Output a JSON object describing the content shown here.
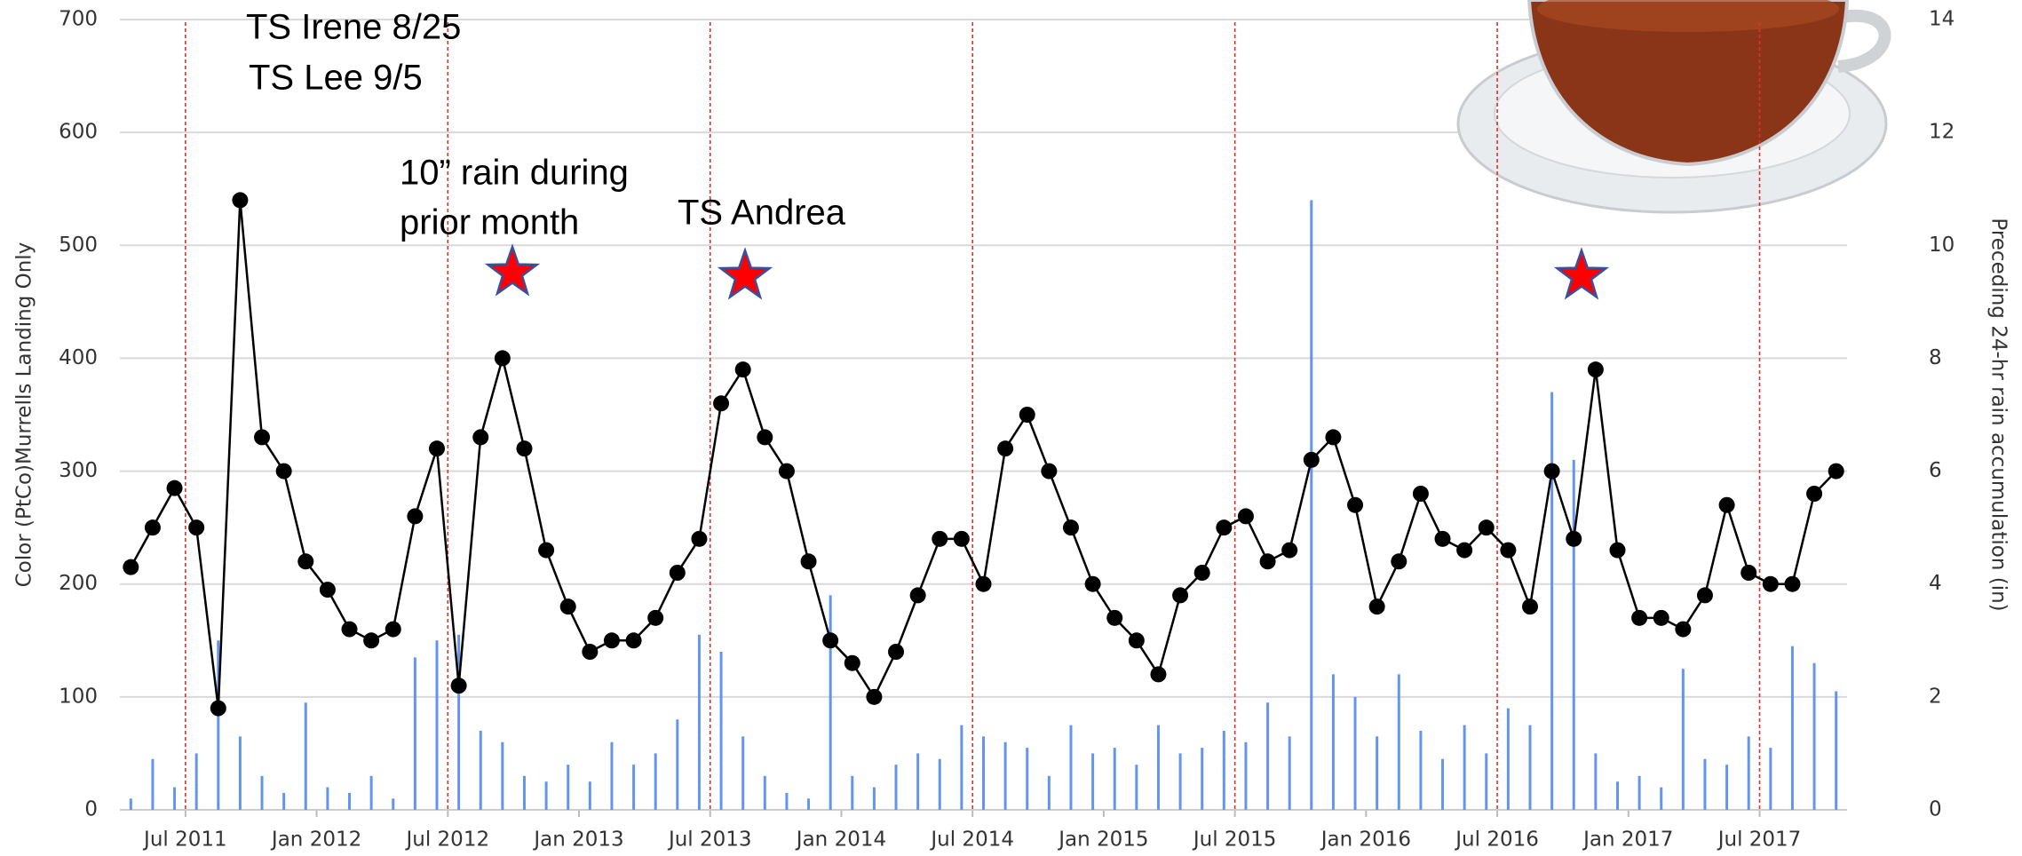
{
  "chart_data": {
    "type": "dual",
    "y_label": "Color (PtCo)Murrells Landing Only",
    "y2_label": "Preceding 24-hr rain accumulation (in)",
    "annotations": [
      "TS Irene 8/25",
      "TS Lee 9/5",
      [
        "10” rain during",
        "prior month"
      ],
      "TS Andrea"
    ],
    "xlim": [
      "2011-04",
      "2017-11"
    ],
    "xticks": [
      {
        "value": "2011-07",
        "label": "Jul 2011"
      },
      {
        "value": "2012-01",
        "label": "Jan 2012"
      },
      {
        "value": "2012-07",
        "label": "Jul 2012"
      },
      {
        "value": "2013-01",
        "label": "Jan 2013"
      },
      {
        "value": "2013-07",
        "label": "Jul 2013"
      },
      {
        "value": "2014-01",
        "label": "Jan 2014"
      },
      {
        "value": "2014-07",
        "label": "Jul 2014"
      },
      {
        "value": "2015-01",
        "label": "Jan 2015"
      },
      {
        "value": "2015-07",
        "label": "Jul 2015"
      },
      {
        "value": "2016-01",
        "label": "Jan 2016"
      },
      {
        "value": "2016-07",
        "label": "Jul 2016"
      },
      {
        "value": "2017-01",
        "label": "Jan 2017"
      },
      {
        "value": "2017-07",
        "label": "Jul 2017"
      }
    ],
    "vlines": {
      "x": [
        "2011-07",
        "2012-07",
        "2013-07",
        "2014-07",
        "2015-07",
        "2016-07",
        "2017-07"
      ],
      "color": "#e0302a"
    },
    "ylim": [
      0,
      700
    ],
    "yticks": [
      0,
      100,
      200,
      300,
      400,
      500,
      600,
      700
    ],
    "y2lim": [
      0,
      14
    ],
    "y2ticks": [
      0,
      2,
      4,
      6,
      8,
      10,
      12,
      14
    ],
    "grid": true,
    "x": [
      "2011-04",
      "2011-05",
      "2011-06",
      "2011-07",
      "2011-08",
      "2011-09",
      "2011-10",
      "2011-11",
      "2011-12",
      "2012-01",
      "2012-02",
      "2012-03",
      "2012-04",
      "2012-05",
      "2012-06",
      "2012-07",
      "2012-08",
      "2012-09",
      "2012-10",
      "2012-11",
      "2012-12",
      "2013-01",
      "2013-02",
      "2013-03",
      "2013-04",
      "2013-05",
      "2013-06",
      "2013-07",
      "2013-08",
      "2013-09",
      "2013-10",
      "2013-11",
      "2013-12",
      "2014-01",
      "2014-02",
      "2014-03",
      "2014-04",
      "2014-05",
      "2014-06",
      "2014-07",
      "2014-08",
      "2014-09",
      "2014-10",
      "2014-11",
      "2014-12",
      "2015-01",
      "2015-02",
      "2015-03",
      "2015-04",
      "2015-05",
      "2015-06",
      "2015-07",
      "2015-08",
      "2015-09",
      "2015-10",
      "2015-11",
      "2015-12",
      "2016-01",
      "2016-02",
      "2016-03",
      "2016-04",
      "2016-05",
      "2016-06",
      "2016-07",
      "2016-08",
      "2016-09",
      "2016-10",
      "2016-11",
      "2016-12",
      "2017-01",
      "2017-02",
      "2017-03",
      "2017-04",
      "2017-05",
      "2017-06",
      "2017-07",
      "2017-08",
      "2017-09",
      "2017-10"
    ],
    "series": [
      {
        "type": "scatter",
        "color": "#000000",
        "values": [
          215,
          250,
          285,
          250,
          90,
          540,
          330,
          300,
          220,
          195,
          160,
          150,
          160,
          260,
          320,
          110,
          330,
          400,
          320,
          230,
          180,
          140,
          150,
          150,
          170,
          210,
          240,
          360,
          390,
          330,
          300,
          220,
          150,
          130,
          100,
          140,
          190,
          240,
          240,
          200,
          320,
          350,
          300,
          250,
          200,
          170,
          150,
          120,
          190,
          210,
          250,
          260,
          220,
          230,
          310,
          330,
          270,
          180,
          220,
          280,
          240,
          230,
          250,
          230,
          180,
          300,
          240,
          390,
          230,
          170,
          170,
          160,
          190,
          270,
          210,
          200,
          200,
          280,
          300
        ]
      },
      {
        "type": "bar",
        "axis": "y2",
        "color": "#6495ed",
        "values": [
          0.2,
          0.9,
          0.4,
          1.0,
          3.0,
          1.3,
          0.6,
          0.3,
          1.9,
          0.4,
          0.3,
          0.6,
          0.2,
          2.7,
          3.0,
          3.1,
          1.4,
          1.2,
          0.6,
          0.5,
          0.8,
          0.5,
          1.2,
          0.8,
          1.0,
          1.6,
          3.1,
          2.8,
          1.3,
          0.6,
          0.3,
          0.2,
          3.8,
          0.6,
          0.4,
          0.8,
          1.0,
          0.9,
          1.5,
          1.3,
          1.2,
          1.1,
          0.6,
          1.5,
          1.0,
          1.1,
          0.8,
          1.5,
          1.0,
          1.1,
          1.4,
          1.2,
          1.9,
          1.3,
          10.8,
          2.4,
          2.0,
          1.3,
          2.4,
          1.4,
          0.9,
          1.5,
          1.0,
          1.8,
          1.5,
          7.4,
          6.2,
          1.0,
          0.5,
          0.6,
          0.4,
          2.5,
          0.9,
          0.8,
          1.3,
          1.1,
          2.9,
          2.6,
          2.1
        ]
      }
    ]
  }
}
